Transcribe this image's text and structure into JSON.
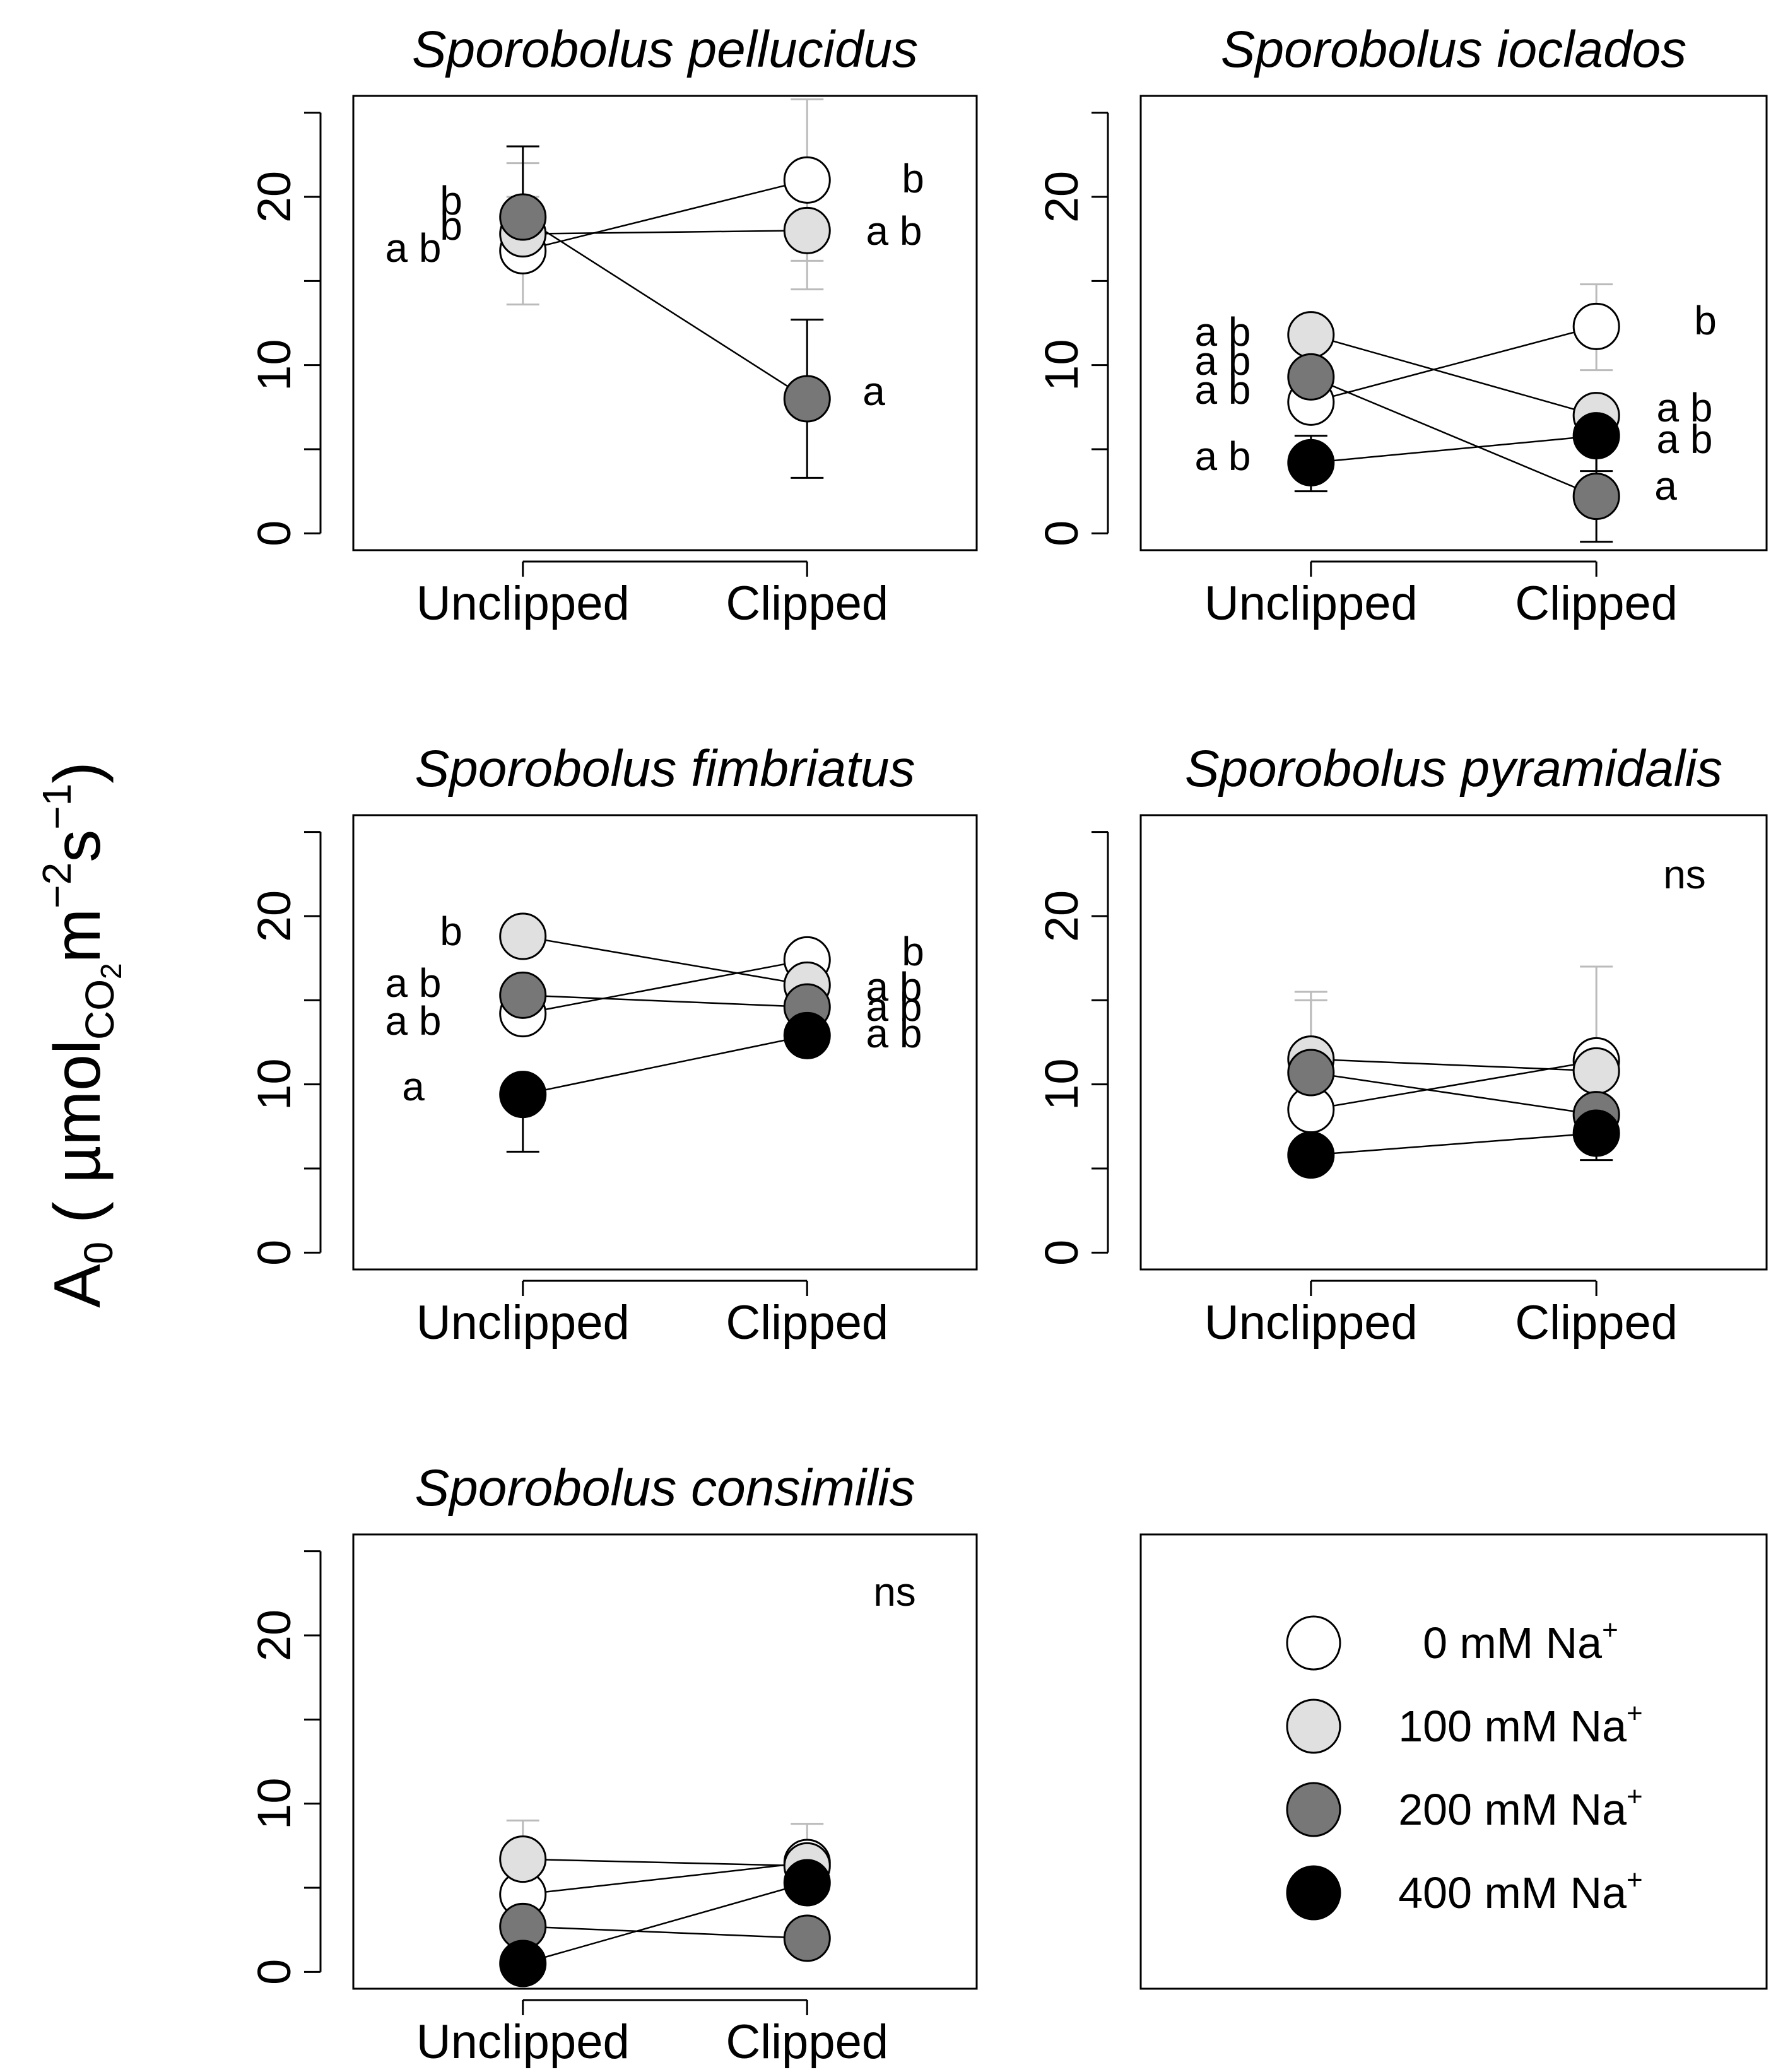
{
  "figure": {
    "ylabel_main": "A",
    "ylabel_sub0": "0",
    "ylabel_open": " ( µmol",
    "ylabel_co": "CO",
    "ylabel_co2": "2",
    "ylabel_m": "m",
    "ylabel_exp_m": "−2",
    "ylabel_s": "s",
    "ylabel_exp_s": "−1",
    "ylabel_close": ")"
  },
  "colors": {
    "0 mM": "#ffffff",
    "100 mM": "#e0e0e0",
    "200 mM": "#777777",
    "400 mM": "#000000",
    "outline": "#000000",
    "error_bar_light": "#bbbbbb",
    "error_bar_dark": "#000000"
  },
  "legend": {
    "items": [
      {
        "treatment": "0 mM",
        "label": "0 mM Na",
        "sup": "+"
      },
      {
        "treatment": "100 mM",
        "label": "100 mM Na",
        "sup": "+"
      },
      {
        "treatment": "200 mM",
        "label": "200 mM Na",
        "sup": "+"
      },
      {
        "treatment": "400 mM",
        "label": "400 mM Na",
        "sup": "+"
      }
    ]
  },
  "chart_data": [
    {
      "type": "line",
      "title": "Sporobolus pellucidus",
      "categories": [
        "Unclipped",
        "Clipped"
      ],
      "yticks": [
        "0",
        "10",
        "20"
      ],
      "ylim": [
        -1,
        26
      ],
      "note": "",
      "series": [
        {
          "name": "0 mM",
          "values": [
            16.8,
            21.0
          ],
          "err": [
            [
              13.6,
              20.0
            ],
            [
              16.2,
              25.8
            ]
          ],
          "letters": [
            "a b",
            "b"
          ]
        },
        {
          "name": "100 mM",
          "values": [
            17.8,
            18.0
          ],
          "err": [
            [
              null,
              22.0
            ],
            [
              14.5,
              21.5
            ]
          ],
          "letters": [
            "b",
            "a b"
          ]
        },
        {
          "name": "200 mM",
          "values": [
            18.8,
            8.0
          ],
          "err": [
            [
              null,
              23.0
            ],
            [
              3.3,
              12.7
            ]
          ],
          "letters": [
            "b",
            "a"
          ]
        }
      ]
    },
    {
      "type": "line",
      "title": "Sporobolus ioclados",
      "categories": [
        "Unclipped",
        "Clipped"
      ],
      "yticks": [
        "0",
        "10",
        "20"
      ],
      "ylim": [
        -1,
        26
      ],
      "note": "",
      "series": [
        {
          "name": "0 mM",
          "values": [
            7.8,
            12.3
          ],
          "err": [
            [
              null,
              null
            ],
            [
              9.7,
              14.8
            ]
          ],
          "letters": [
            "a b",
            "b"
          ]
        },
        {
          "name": "100 mM",
          "values": [
            11.8,
            7.0
          ],
          "err": [
            [
              null,
              null
            ],
            [
              null,
              null
            ]
          ],
          "letters": [
            "a b",
            "a b"
          ]
        },
        {
          "name": "200 mM",
          "values": [
            9.3,
            2.2
          ],
          "err": [
            [
              null,
              null
            ],
            [
              -0.5,
              4.9
            ]
          ],
          "letters": [
            "a b",
            "a"
          ]
        },
        {
          "name": "400 mM",
          "values": [
            4.2,
            5.8
          ],
          "err": [
            [
              2.5,
              5.8
            ],
            [
              3.7,
              7.5
            ]
          ],
          "letters": [
            "a b",
            "a b"
          ]
        }
      ]
    },
    {
      "type": "line",
      "title": "Sporobolus fimbriatus",
      "categories": [
        "Unclipped",
        "Clipped"
      ],
      "yticks": [
        "0",
        "10",
        "20"
      ],
      "ylim": [
        -1,
        26
      ],
      "note": "",
      "series": [
        {
          "name": "0 mM",
          "values": [
            14.2,
            17.4
          ],
          "err": [
            [
              null,
              null
            ],
            [
              null,
              null
            ]
          ],
          "letters": [
            "a b",
            "b"
          ]
        },
        {
          "name": "100 mM",
          "values": [
            18.8,
            15.9
          ],
          "err": [
            [
              null,
              null
            ],
            [
              null,
              null
            ]
          ],
          "letters": [
            "b",
            "a b"
          ]
        },
        {
          "name": "200 mM",
          "values": [
            15.3,
            14.6
          ],
          "err": [
            [
              null,
              null
            ],
            [
              null,
              null
            ]
          ],
          "letters": [
            "a b",
            "a b"
          ]
        },
        {
          "name": "400 mM",
          "values": [
            9.4,
            12.9
          ],
          "err": [
            [
              6.0,
              null
            ],
            [
              null,
              null
            ]
          ],
          "letters": [
            "a",
            "a b"
          ]
        }
      ]
    },
    {
      "type": "line",
      "title": "Sporobolus pyramidalis",
      "categories": [
        "Unclipped",
        "Clipped"
      ],
      "yticks": [
        "0",
        "10",
        "20"
      ],
      "ylim": [
        -1,
        26
      ],
      "note": "ns",
      "series": [
        {
          "name": "0 mM",
          "values": [
            8.5,
            11.4
          ],
          "err": [
            [
              null,
              15.0
            ],
            [
              null,
              17.0
            ]
          ],
          "letters": [
            "",
            ""
          ]
        },
        {
          "name": "100 mM",
          "values": [
            11.5,
            10.8
          ],
          "err": [
            [
              null,
              15.5
            ],
            [
              null,
              null
            ]
          ],
          "letters": [
            "",
            ""
          ]
        },
        {
          "name": "200 mM",
          "values": [
            10.7,
            8.2
          ],
          "err": [
            [
              null,
              null
            ],
            [
              null,
              null
            ]
          ],
          "letters": [
            "",
            ""
          ]
        },
        {
          "name": "400 mM",
          "values": [
            5.8,
            7.1
          ],
          "err": [
            [
              null,
              null
            ],
            [
              5.5,
              null
            ]
          ],
          "letters": [
            "",
            ""
          ]
        }
      ]
    },
    {
      "type": "line",
      "title": "Sporobolus consimilis",
      "categories": [
        "Unclipped",
        "Clipped"
      ],
      "yticks": [
        "0",
        "10",
        "20"
      ],
      "ylim": [
        -1,
        26
      ],
      "note": "ns",
      "series": [
        {
          "name": "0 mM",
          "values": [
            4.6,
            6.5
          ],
          "err": [
            [
              null,
              null
            ],
            [
              null,
              8.8
            ]
          ],
          "letters": [
            "",
            ""
          ]
        },
        {
          "name": "100 mM",
          "values": [
            6.7,
            6.3
          ],
          "err": [
            [
              null,
              9.0
            ],
            [
              null,
              null
            ]
          ],
          "letters": [
            "",
            ""
          ]
        },
        {
          "name": "200 mM",
          "values": [
            2.7,
            2.0
          ],
          "err": [
            [
              null,
              null
            ],
            [
              null,
              null
            ]
          ],
          "letters": [
            "",
            ""
          ]
        },
        {
          "name": "400 mM",
          "values": [
            0.5,
            5.3
          ],
          "err": [
            [
              null,
              null
            ],
            [
              null,
              null
            ]
          ],
          "letters": [
            "",
            ""
          ]
        }
      ]
    }
  ]
}
